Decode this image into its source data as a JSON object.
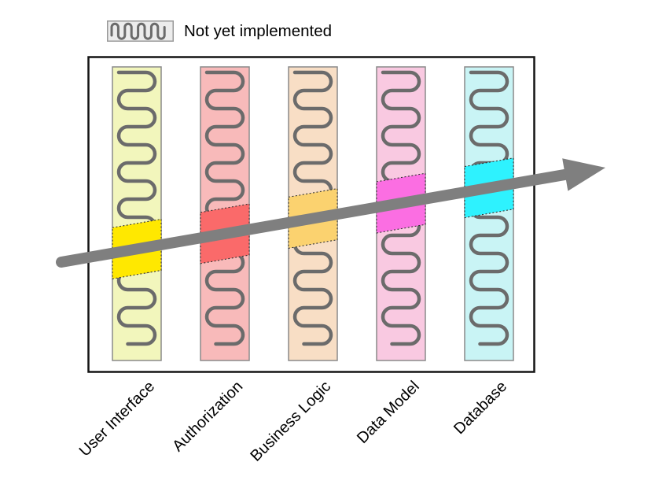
{
  "legend": {
    "label": "Not yet implemented",
    "box_bg": "#ececec",
    "box_border": "#999999"
  },
  "diagram": {
    "outer_border_color": "#141414",
    "column_border_color": "#8a8a8a",
    "squiggle_color": "#6b6b6b",
    "highlight_border_color": "#333333",
    "arrow_color": "#7f7f7f",
    "layers": [
      {
        "label": "User Interface",
        "base_color": "#f2f6bc",
        "highlight_color": "#ffe800"
      },
      {
        "label": "Authorization",
        "base_color": "#f8baba",
        "highlight_color": "#fa6a6a"
      },
      {
        "label": "Business Logic",
        "base_color": "#f8dec5",
        "highlight_color": "#fbd26f"
      },
      {
        "label": "Data Model",
        "base_color": "#f9c9e1",
        "highlight_color": "#fb6ee2"
      },
      {
        "label": "Database",
        "base_color": "#c9f4f5",
        "highlight_color": "#2ef2fe"
      }
    ]
  }
}
